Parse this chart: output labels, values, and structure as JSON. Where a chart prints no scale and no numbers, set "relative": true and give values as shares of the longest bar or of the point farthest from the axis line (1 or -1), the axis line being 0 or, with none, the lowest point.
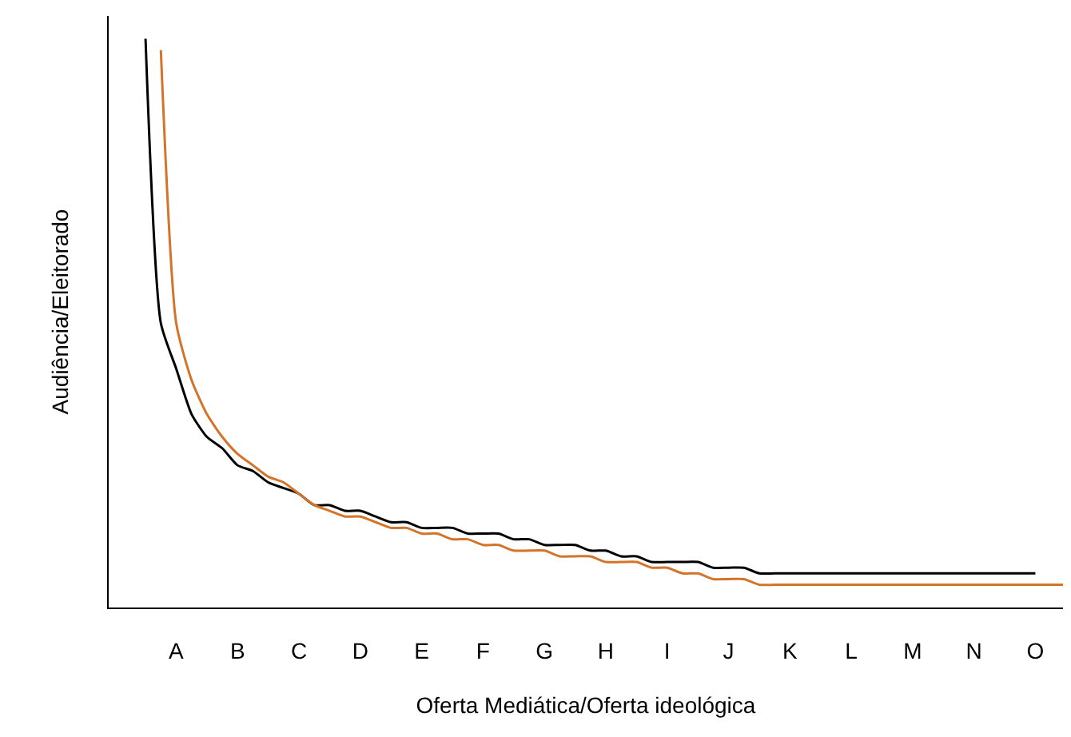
{
  "chart_data": {
    "type": "line",
    "relative": true,
    "xlabel": "Oferta Mediática/Oferta ideológica",
    "ylabel": "Audiência/Eleitorado",
    "categories": [
      null,
      null,
      "A",
      null,
      null,
      null,
      "B",
      null,
      null,
      null,
      "C",
      null,
      null,
      null,
      "D",
      null,
      null,
      null,
      "E",
      null,
      null,
      null,
      "F",
      null,
      null,
      null,
      "G",
      null,
      null,
      null,
      "H",
      null,
      null,
      null,
      "I",
      null,
      null,
      null,
      "J",
      null,
      null,
      null,
      "K",
      null,
      null,
      null,
      "L",
      null,
      null,
      null,
      "M",
      null,
      null,
      null,
      "N",
      null,
      null,
      null,
      "O",
      null,
      null
    ],
    "grid": false,
    "marker": "none",
    "line_style": "solid",
    "series": [
      {
        "color": "#000000",
        "values": [
          1,
          0.5,
          0.42,
          0.34,
          0.3,
          0.28,
          0.25,
          0.24,
          0.22,
          0.21,
          0.2,
          0.18,
          0.18,
          0.17,
          0.17,
          0.16,
          0.15,
          0.15,
          0.14,
          0.14,
          0.14,
          0.13,
          0.13,
          0.13,
          0.12,
          0.12,
          0.11,
          0.11,
          0.11,
          0.1,
          0.1,
          0.09,
          0.09,
          0.08,
          0.08,
          0.08,
          0.08,
          0.07,
          0.07,
          0.07,
          0.06,
          0.06,
          0.06,
          0.06,
          0.06,
          0.06,
          0.06,
          0.06,
          0.06,
          0.06,
          0.06,
          0.06,
          0.06,
          0.06,
          0.06,
          0.06,
          0.06,
          0.06,
          0.06,
          null,
          null
        ]
      },
      {
        "color": "#d4742a",
        "values": [
          null,
          0.98,
          0.5,
          0.4,
          0.34,
          0.3,
          0.27,
          0.25,
          0.23,
          0.22,
          0.2,
          0.18,
          0.17,
          0.16,
          0.16,
          0.15,
          0.14,
          0.14,
          0.13,
          0.13,
          0.12,
          0.12,
          0.11,
          0.11,
          0.1,
          0.1,
          0.1,
          0.09,
          0.09,
          0.09,
          0.08,
          0.08,
          0.08,
          0.07,
          0.07,
          0.06,
          0.06,
          0.05,
          0.05,
          0.05,
          0.04,
          0.04,
          0.04,
          0.04,
          0.04,
          0.04,
          0.04,
          0.04,
          0.04,
          0.04,
          0.04,
          0.04,
          0.04,
          0.04,
          0.04,
          0.04,
          0.04,
          0.04,
          0.04,
          0.04,
          0.04
        ]
      }
    ]
  }
}
